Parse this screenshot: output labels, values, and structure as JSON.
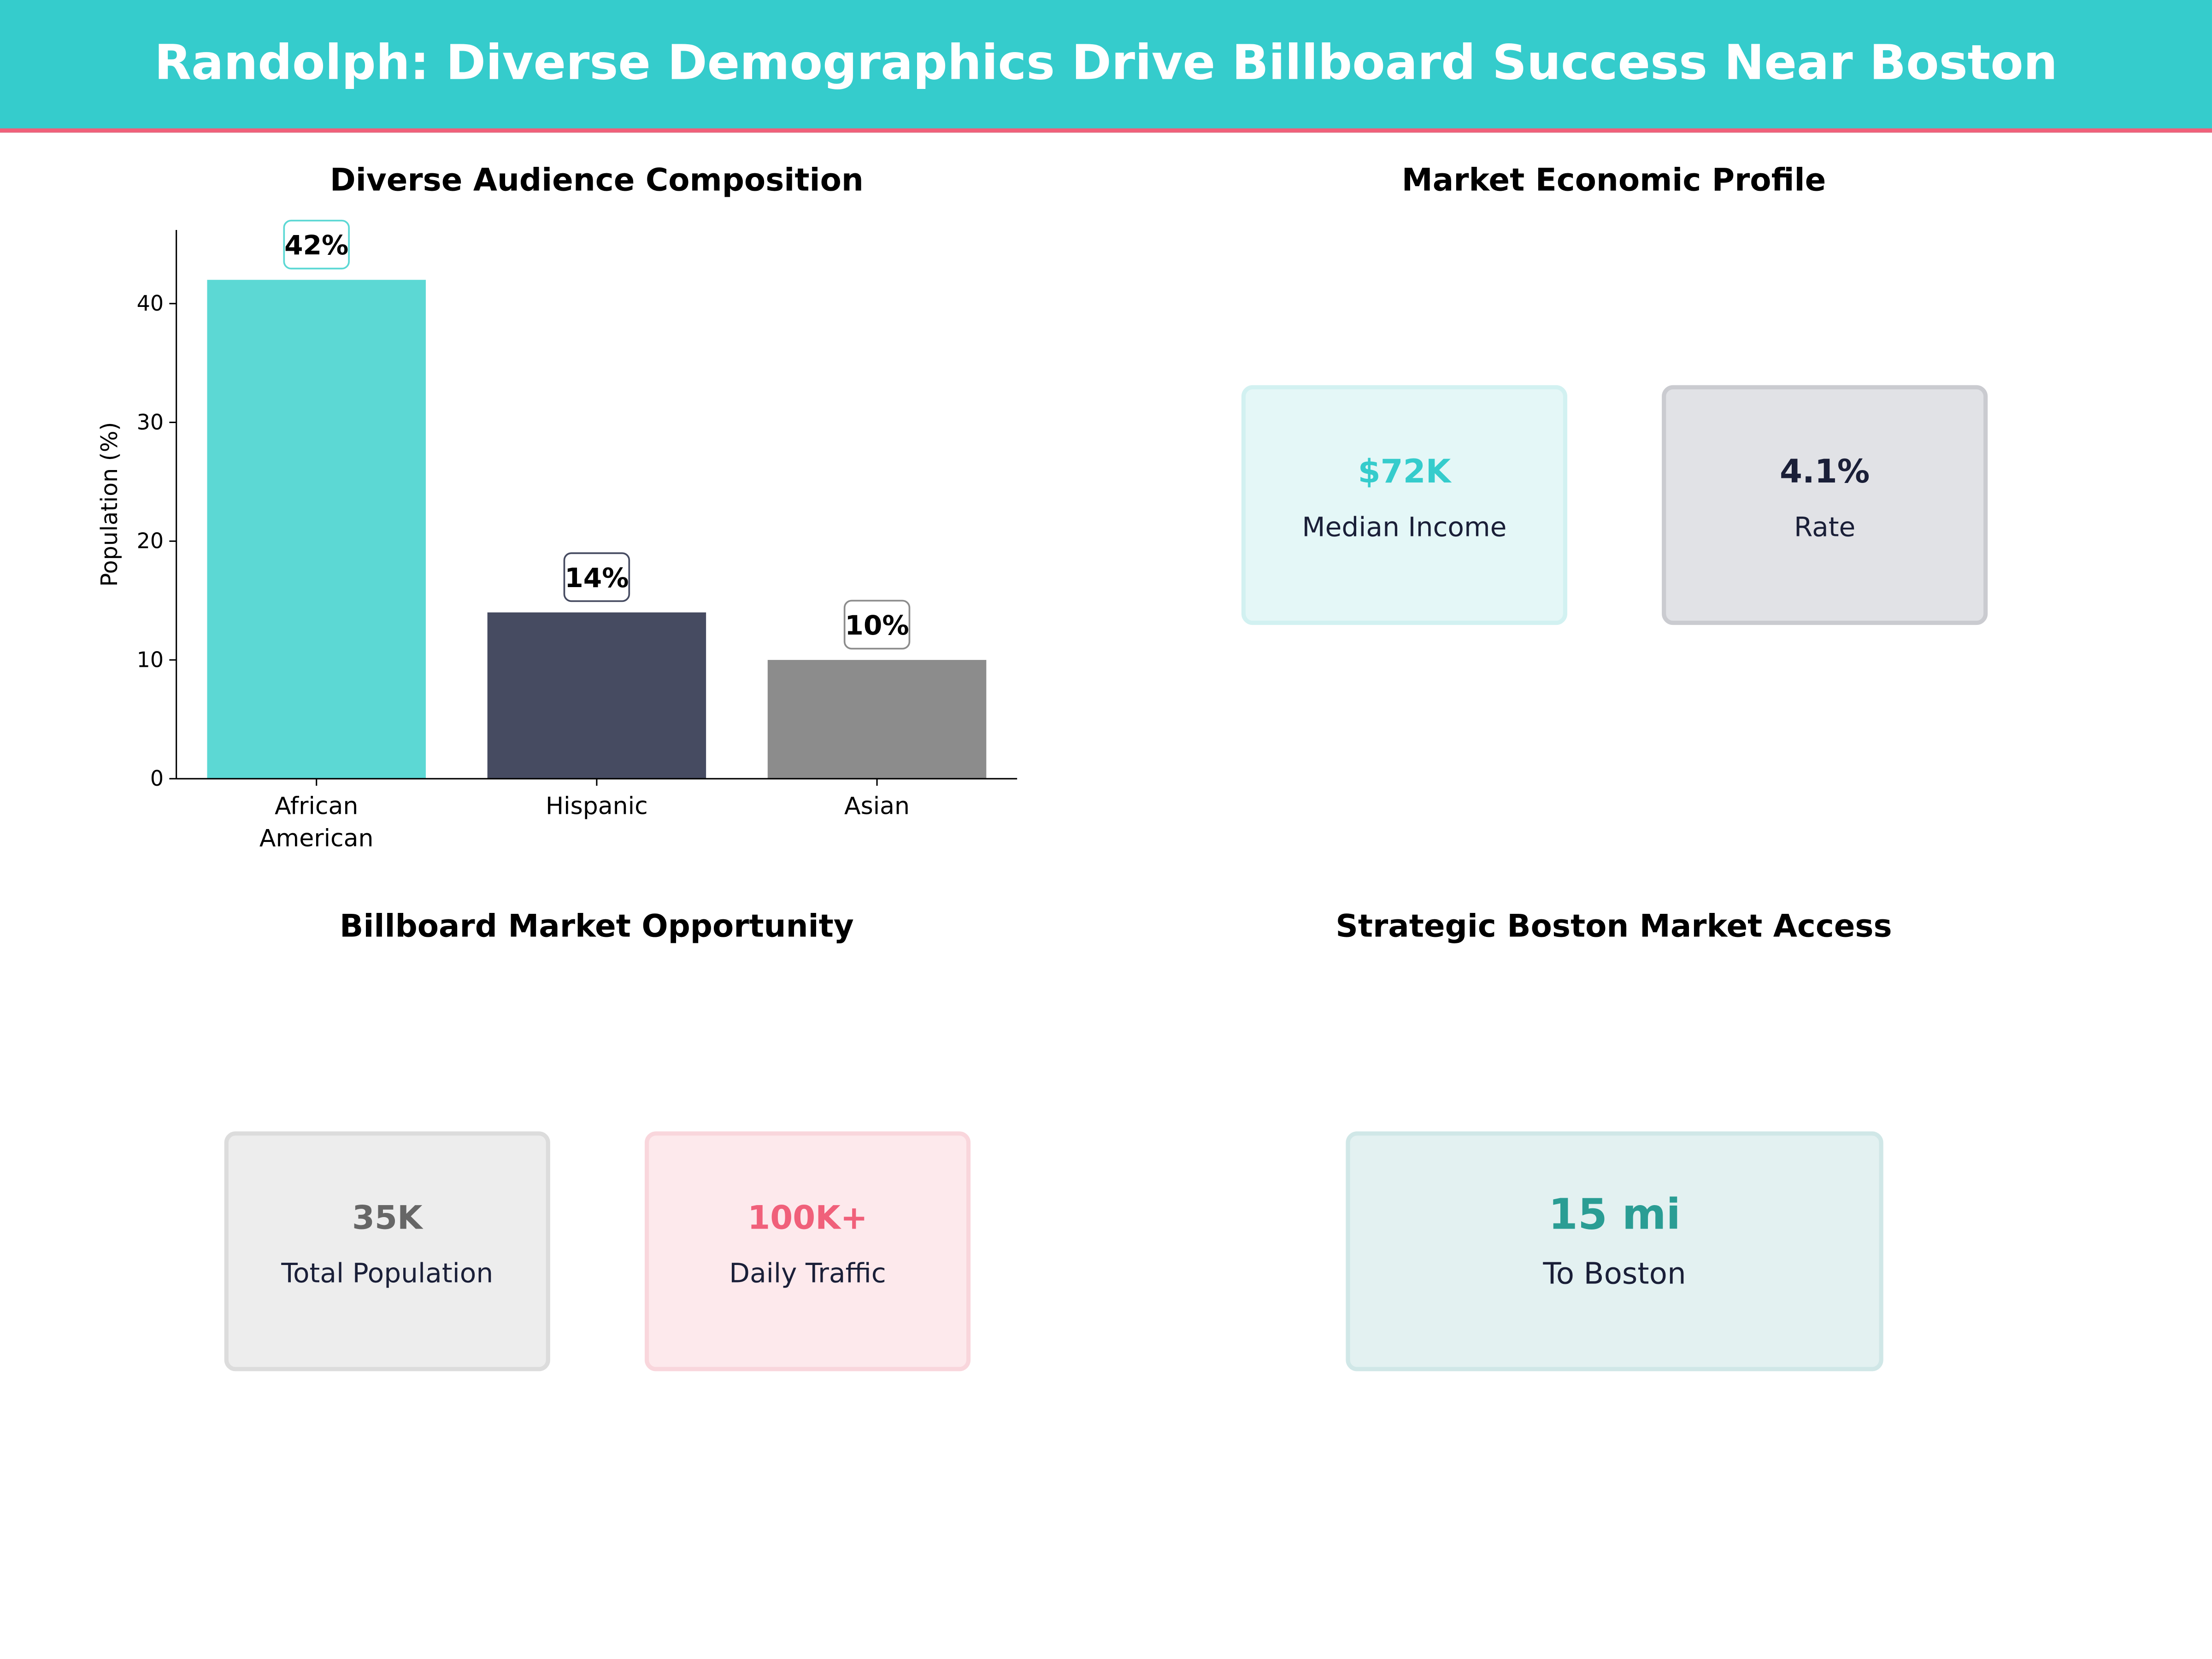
{
  "header": {
    "title": "Randolph: Diverse Demographics Drive Billboard Success Near Boston",
    "bg_color": "#35CCCC",
    "accent_line_color": "#F0607A"
  },
  "chart_data": {
    "type": "bar",
    "title": "Diverse Audience Composition",
    "categories": [
      "African\nAmerican",
      "Hispanic",
      "Asian"
    ],
    "category_lines": [
      [
        "African",
        "American"
      ],
      [
        "Hispanic"
      ],
      [
        "Asian"
      ]
    ],
    "values": [
      42,
      14,
      10
    ],
    "data_labels": [
      "42%",
      "14%",
      "10%"
    ],
    "colors": [
      "#5CD8D4",
      "#464B61",
      "#8C8C8C"
    ],
    "xlabel": "",
    "ylabel": "Population (%)",
    "ylim": [
      0,
      46.2
    ],
    "yticks": [
      0,
      10,
      20,
      30,
      40
    ],
    "grid": false
  },
  "economic": {
    "title": "Market Economic Profile",
    "cards": [
      {
        "value": "$72K",
        "label": "Median Income",
        "value_color": "#35CCCC",
        "bg": "#E4F7F7",
        "border": "#D2F1F1"
      },
      {
        "value": "4.1%",
        "label": "Rate",
        "value_color": "#1A1F38",
        "bg": "#E1E2E6",
        "border": "#CACBD0"
      }
    ]
  },
  "opportunity": {
    "title": "Billboard Market Opportunity",
    "cards": [
      {
        "value": "35K",
        "label": "Total Population",
        "value_color": "#666666",
        "bg": "#EDEDED",
        "border": "#DCDCDC"
      },
      {
        "value": "100K+",
        "label": "Daily Traffic",
        "value_color": "#F0607A",
        "bg": "#FDE9EC",
        "border": "#F9D6DC"
      }
    ]
  },
  "access": {
    "title": "Strategic Boston Market Access",
    "card": {
      "value": "15 mi",
      "label": "To Boston",
      "value_color": "#2A9D94",
      "bg": "#E3F1F1",
      "border": "#D0E7E7"
    }
  }
}
